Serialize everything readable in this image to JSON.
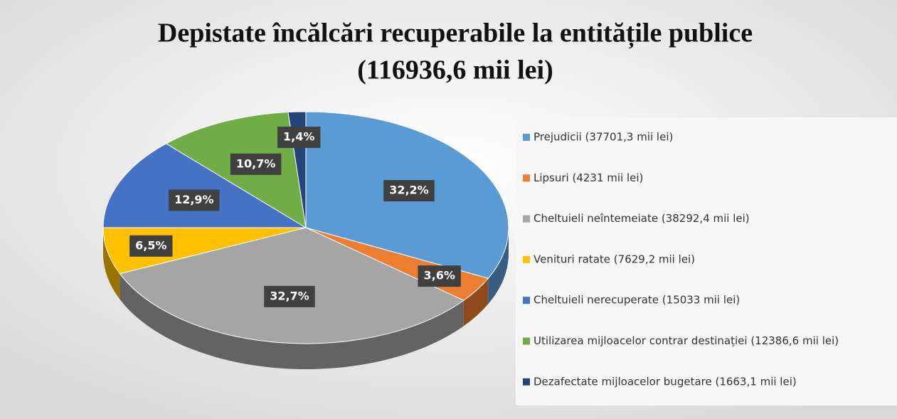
{
  "chart_data": {
    "type": "pie",
    "title": "Depistate încălcări recuperabile la entitățile publice",
    "subtitle": "(116936,6 mii lei)",
    "categories": [
      "Prejudicii (37701,3 mii lei)",
      "Lipsuri (4231 mii lei)",
      "Cheltuieli  neîntemeiate (38292,4 mii lei)",
      "Venituri ratate (7629,2 mii lei)",
      "Cheltuieli  nerecuperate (15033 mii lei)",
      "Utilizarea  mijloacelor contrar destinației (12386,6 mii lei)",
      "Dezafectate  mijloacelor bugetare (1663,1 mii lei)"
    ],
    "values": [
      32.2,
      3.6,
      32.7,
      6.5,
      12.9,
      10.7,
      1.4
    ],
    "value_labels": [
      "32,2%",
      "3,6%",
      "32,7%",
      "6,5%",
      "12,9%",
      "10,7%",
      "1,4%"
    ],
    "colors": [
      "#5b9bd5",
      "#ed7d31",
      "#a5a5a5",
      "#ffc000",
      "#4472c4",
      "#70ad47",
      "#264478"
    ],
    "legend": "right"
  }
}
